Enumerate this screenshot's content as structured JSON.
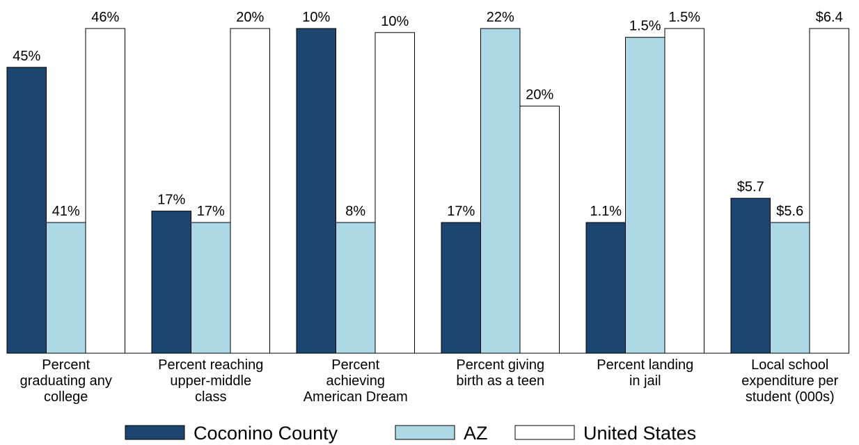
{
  "chart_data": {
    "type": "bar",
    "categories": [
      "Percent\ngraduating any\ncollege",
      "Percent reaching\nupper-middle\nclass",
      "Percent\nachieving\nAmerican Dream",
      "Percent giving\nbirth as a teen",
      "Percent landing\nin jail",
      "Local school\nexpenditure per\nstudent (000s)"
    ],
    "series": [
      {
        "name": "Coconino County",
        "color": "#1c4670",
        "values": [
          45,
          17.0,
          10.4,
          17,
          1.1,
          5.7
        ],
        "value_labels": [
          "45%",
          "17%",
          "10%",
          "17%",
          "1.1%",
          "$5.7"
        ]
      },
      {
        "name": "AZ",
        "color": "#add8e6",
        "values": [
          41,
          16.8,
          8,
          22,
          1.52,
          5.6
        ],
        "value_labels": [
          "41%",
          "17%",
          "8%",
          "22%",
          "1.5%",
          "$5.6"
        ]
      },
      {
        "name": "United States",
        "color": "#ffffff",
        "values": [
          46,
          20.2,
          10.35,
          20,
          1.54,
          6.4
        ],
        "value_labels": [
          "46%",
          "20%",
          "10%",
          "20%",
          "1.5%",
          "$6.4"
        ]
      }
    ],
    "legend": "bottom"
  }
}
